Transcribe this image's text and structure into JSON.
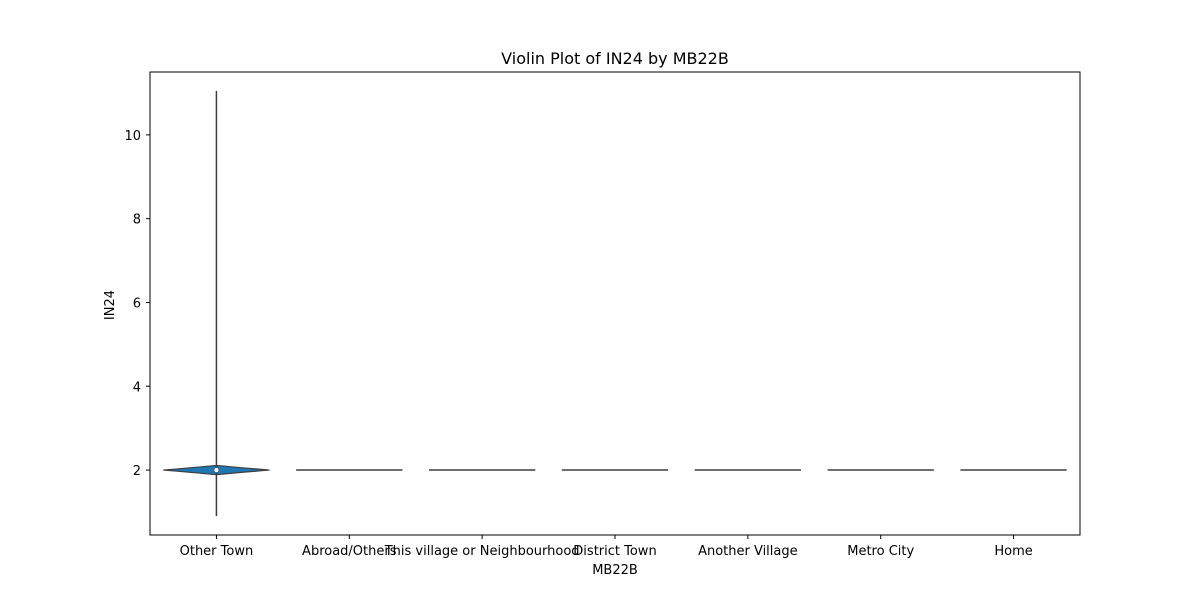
{
  "chart_data": {
    "type": "violin",
    "title": "Violin Plot of IN24 by MB22B",
    "xlabel": "MB22B",
    "ylabel": "IN24",
    "ylim": [
      0.45,
      11.5
    ],
    "yticks": [
      2,
      4,
      6,
      8,
      10
    ],
    "categories": [
      "Other Town",
      "Abroad/Others",
      "This village or Neighbourhood",
      "District Town",
      "Another Village",
      "Metro City",
      "Home"
    ],
    "violins": [
      {
        "category": "Other Town",
        "min": 0.9,
        "max": 11.05,
        "median": 2.0,
        "q1": 1.95,
        "q3": 2.05
      },
      {
        "category": "Abroad/Others",
        "min": 2.0,
        "max": 2.0,
        "median": 2.0
      },
      {
        "category": "This village or Neighbourhood",
        "min": 2.0,
        "max": 2.0,
        "median": 2.0
      },
      {
        "category": "District Town",
        "min": 2.0,
        "max": 2.0,
        "median": 2.0
      },
      {
        "category": "Another Village",
        "min": 2.0,
        "max": 2.0,
        "median": 2.0
      },
      {
        "category": "Metro City",
        "min": 2.0,
        "max": 2.0,
        "median": 2.0
      },
      {
        "category": "Home",
        "min": 2.0,
        "max": 2.0,
        "median": 2.0
      }
    ],
    "grid": false,
    "colors": {
      "violin_fill": "#1f77b4",
      "line": "#3f3f3f"
    }
  }
}
